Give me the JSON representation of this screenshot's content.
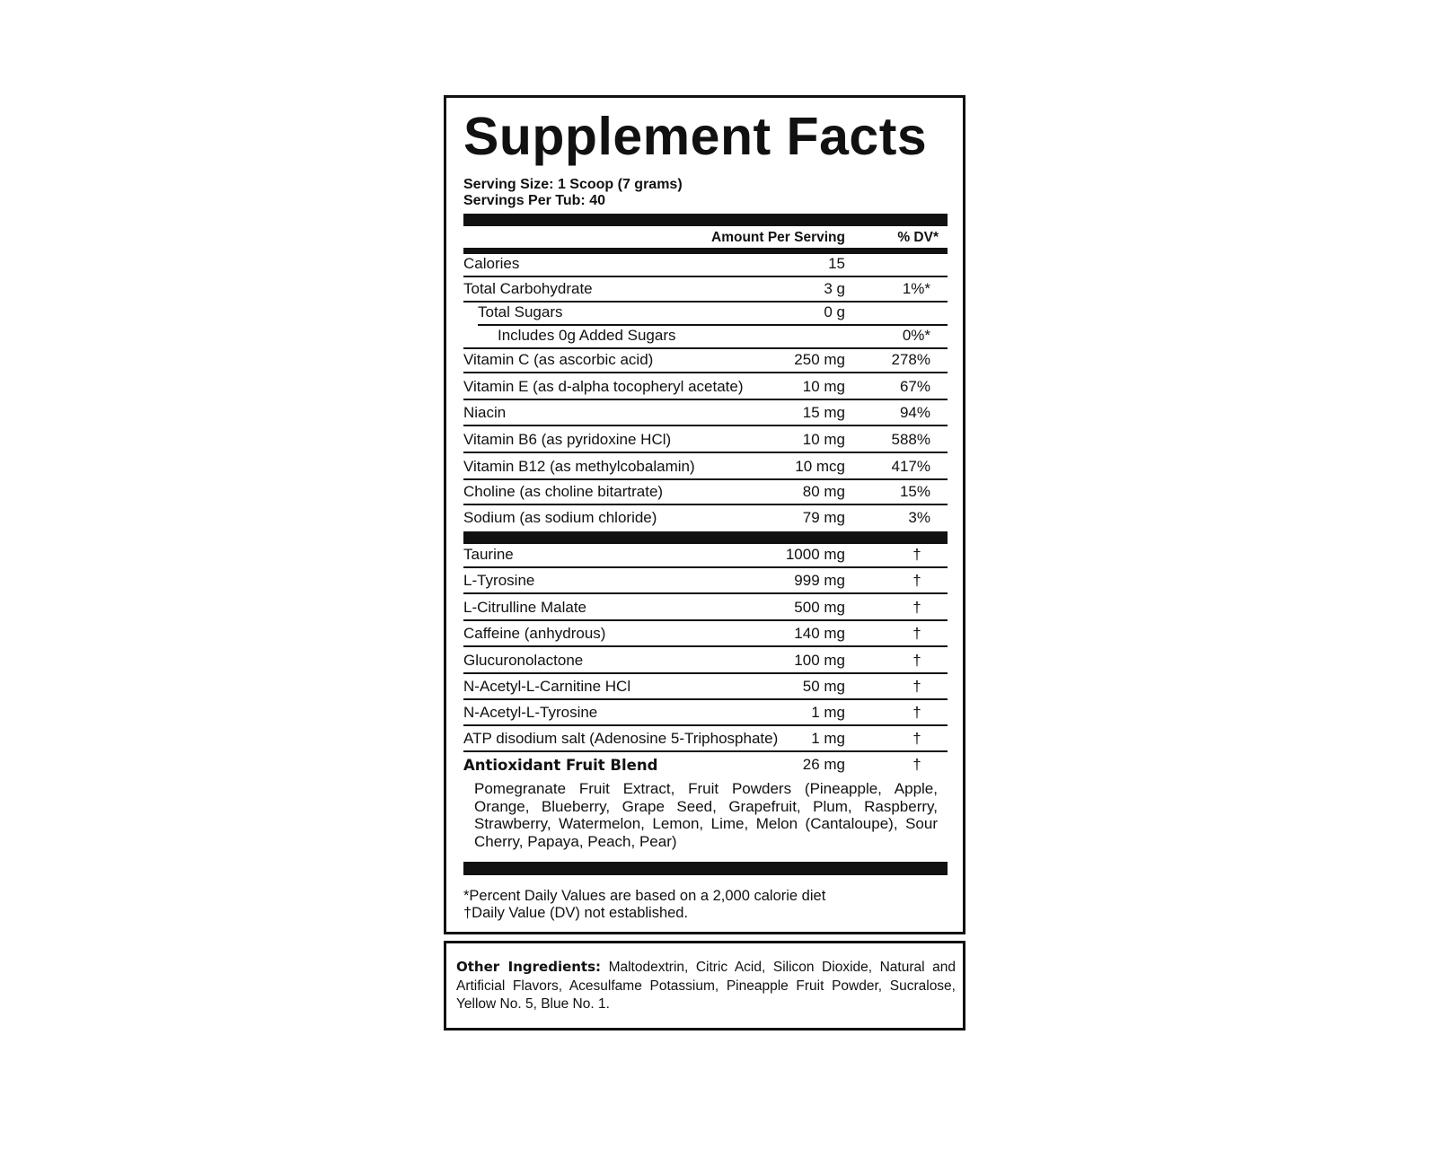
{
  "title": "Supplement Facts",
  "serving_size_label": "Serving Size:",
  "serving_size_value": "1 Scoop (7 grams)",
  "servings_per_label": "Servings Per Tub:",
  "servings_per_value": "40",
  "header": {
    "amount": "Amount Per Serving",
    "dv": "% DV*"
  },
  "nutrients": [
    {
      "name": "Calories",
      "amount": "15",
      "dv": ""
    },
    {
      "name": "Total Carbohydrate",
      "amount": "3 g",
      "dv": "1%*"
    },
    {
      "name": "Total Sugars",
      "amount": "0 g",
      "dv": "",
      "indent": 1
    },
    {
      "name": "Includes 0g Added Sugars",
      "amount": "",
      "dv": "0%*",
      "indent": 2
    },
    {
      "name": "Vitamin C (as ascorbic acid)",
      "amount": "250 mg",
      "dv": "278%"
    },
    {
      "name": "Vitamin E (as d-alpha tocopheryl acetate)",
      "amount": "10 mg",
      "dv": "67%"
    },
    {
      "name": "Niacin",
      "amount": "15 mg",
      "dv": "94%"
    },
    {
      "name": "Vitamin B6 (as pyridoxine HCl)",
      "amount": "10 mg",
      "dv": "588%"
    },
    {
      "name": "Vitamin B12 (as methylcobalamin)",
      "amount": "10 mcg",
      "dv": "417%"
    },
    {
      "name": "Choline (as choline bitartrate)",
      "amount": "80 mg",
      "dv": "15%"
    },
    {
      "name": "Sodium (as sodium chloride)",
      "amount": "79 mg",
      "dv": "3%"
    }
  ],
  "ingredients": [
    {
      "name": "Taurine",
      "amount": "1000 mg",
      "dv": "†"
    },
    {
      "name": "L-Tyrosine",
      "amount": "999 mg",
      "dv": "†"
    },
    {
      "name": "L-Citrulline Malate",
      "amount": "500 mg",
      "dv": "†"
    },
    {
      "name": "Caffeine (anhydrous)",
      "amount": "140 mg",
      "dv": "†"
    },
    {
      "name": "Glucuronolactone",
      "amount": "100 mg",
      "dv": "†"
    },
    {
      "name": "N-Acetyl-L-Carnitine HCl",
      "amount": "50 mg",
      "dv": "†"
    },
    {
      "name": "N-Acetyl-L-Tyrosine",
      "amount": "1 mg",
      "dv": "†"
    },
    {
      "name": "ATP disodium salt (Adenosine 5-Triphosphate)",
      "amount": "1 mg",
      "dv": "†"
    },
    {
      "name": "Antioxidant Fruit Blend",
      "amount": "26 mg",
      "dv": "†",
      "bold": true
    }
  ],
  "blend_contents": "Pomegranate Fruit Extract, Fruit Powders (Pineapple, Apple, Orange, Blueberry, Grape Seed, Grapefruit, Plum, Raspberry, Strawberry, Watermelon, Lemon, Lime, Melon (Cantaloupe), Sour Cherry, Papaya, Peach, Pear)",
  "footnotes": [
    "*Percent Daily Values are based on a 2,000 calorie diet",
    "†Daily Value (DV) not established."
  ],
  "other_ingredients_label": "Other Ingredients:",
  "other_ingredients": "Maltodextrin, Citric Acid, Silicon Dioxide, Natural and Artificial Flavors, Acesulfame Potassium, Pineapple Fruit Powder, Sucralose, Yellow No. 5, Blue No. 1."
}
